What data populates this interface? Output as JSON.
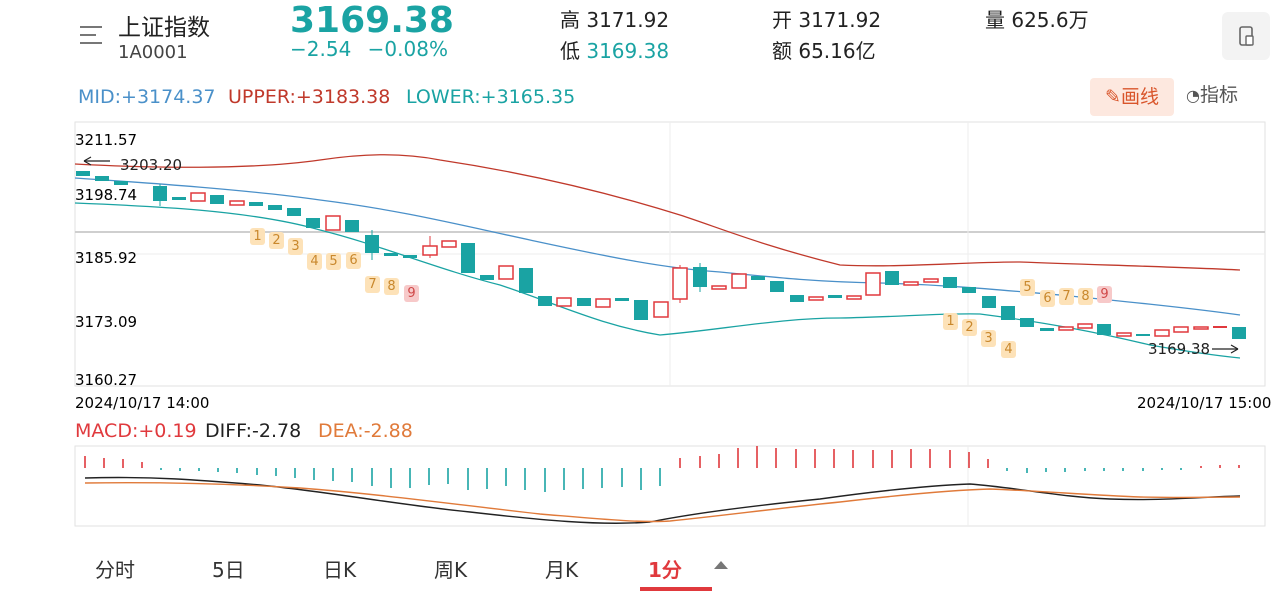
{
  "header": {
    "name": "上证指数",
    "code": "1A0001",
    "price": "3169.38",
    "change": "−2.54",
    "change_pct": "−0.08%",
    "high_label": "高",
    "high": "3171.92",
    "low_label": "低",
    "low": "3169.38",
    "open_label": "开",
    "open": "3171.92",
    "amount_label": "额",
    "amount": "65.16亿",
    "volume_label": "量",
    "volume": "625.6万"
  },
  "boll_legend": {
    "mid": "MID:+3174.37",
    "upper": "UPPER:+3183.38",
    "lower": "LOWER:+3165.35"
  },
  "toolbar": {
    "draw_label": "画线",
    "indicator_label": "指标"
  },
  "main_chart": {
    "y_ticks": [
      "3211.57",
      "3198.74",
      "3185.92",
      "3173.09",
      "3160.27"
    ],
    "start_date": "2024/10/17 14:00",
    "end_date": "2024/10/17 15:00",
    "high_marker": "3203.20",
    "last_marker": "3169.38"
  },
  "macd_legend": {
    "macd": "MACD:+0.19",
    "diff": "DIFF:-2.78",
    "dea": "DEA:-2.88"
  },
  "colors": {
    "up": "#e0393d",
    "down": "#1aa3a3",
    "mid": "#4a90c9",
    "upper": "#c0392b",
    "lower": "#1aa3a3",
    "diff": "#222222",
    "dea": "#e07a3a"
  },
  "tabs": [
    {
      "label": "分时"
    },
    {
      "label": "5日"
    },
    {
      "label": "日K"
    },
    {
      "label": "周K"
    },
    {
      "label": "月K"
    },
    {
      "label": "1分",
      "active": true
    }
  ],
  "tags_a": [
    "1",
    "2",
    "3",
    "4",
    "5",
    "6",
    "7",
    "8",
    "9"
  ],
  "tags_b": [
    "1",
    "2",
    "3",
    "4",
    "5",
    "6",
    "7",
    "8",
    "9"
  ]
}
